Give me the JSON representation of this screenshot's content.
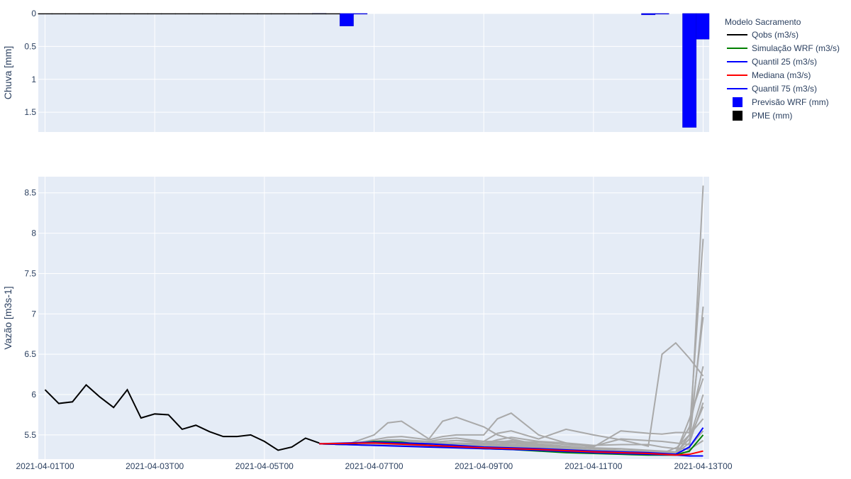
{
  "chart_data": [
    {
      "type": "bar",
      "ylabel": "Chuva [mm]",
      "yaxis_reversed": true,
      "ylim": [
        0,
        1.8
      ],
      "yticks": [
        0,
        0.5,
        1,
        1.5
      ],
      "ytick_labels": [
        "0",
        "0.5",
        "1",
        "1.5"
      ],
      "grid": true,
      "series": [
        {
          "name": "Previsão WRF (mm)",
          "color": "#0000ff",
          "points": [
            [
              "2021-04-06T00",
              0.0
            ],
            [
              "2021-04-06T12",
              0.19
            ],
            [
              "2021-04-06T18",
              0.01
            ],
            [
              "2021-04-12T00",
              0.02
            ],
            [
              "2021-04-12T06",
              0.01
            ],
            [
              "2021-04-12T18",
              1.73
            ],
            [
              "2021-04-13T00",
              0.39
            ]
          ]
        },
        {
          "name": "PME (mm)",
          "color": "#000000",
          "points": [
            [
              "2021-04-01T00",
              0.01
            ],
            [
              "2021-04-01T06",
              0.01
            ],
            [
              "2021-04-01T12",
              0.01
            ],
            [
              "2021-04-01T18",
              0.01
            ],
            [
              "2021-04-02T00",
              0.01
            ],
            [
              "2021-04-02T06",
              0.01
            ],
            [
              "2021-04-02T12",
              0.01
            ],
            [
              "2021-04-02T18",
              0.01
            ],
            [
              "2021-04-03T00",
              0.01
            ],
            [
              "2021-04-03T06",
              0.01
            ],
            [
              "2021-04-03T12",
              0.01
            ],
            [
              "2021-04-03T18",
              0.01
            ],
            [
              "2021-04-04T00",
              0.01
            ],
            [
              "2021-04-04T06",
              0.01
            ],
            [
              "2021-04-04T12",
              0.01
            ],
            [
              "2021-04-04T18",
              0.01
            ],
            [
              "2021-04-05T00",
              0.01
            ],
            [
              "2021-04-05T06",
              0.01
            ],
            [
              "2021-04-05T12",
              0.01
            ],
            [
              "2021-04-05T18",
              0.01
            ],
            [
              "2021-04-06T00",
              0.01
            ],
            [
              "2021-04-06T06",
              0.01
            ]
          ]
        }
      ]
    },
    {
      "type": "line",
      "ylabel": "Vazão [m3s-1]",
      "ylim": [
        5.2,
        8.7
      ],
      "yticks": [
        5.5,
        6,
        6.5,
        7,
        7.5,
        8,
        8.5
      ],
      "ytick_labels": [
        "5.5",
        "6",
        "6.5",
        "7",
        "7.5",
        "8",
        "8.5"
      ],
      "xlim": [
        "2021-04-01T00",
        "2021-04-13T03"
      ],
      "xticks": [
        "2021-04-01T00",
        "2021-04-03T00",
        "2021-04-05T00",
        "2021-04-07T00",
        "2021-04-09T00",
        "2021-04-11T00",
        "2021-04-13T00"
      ],
      "xtick_labels": [
        "2021-04-01T00",
        "2021-04-03T00",
        "2021-04-05T00",
        "2021-04-07T00",
        "2021-04-09T00",
        "2021-04-11T00",
        "2021-04-13T00"
      ],
      "grid": true,
      "series": [
        {
          "name": "Qobs (m3/s)",
          "color": "#000000",
          "x": [
            "2021-04-01T00",
            "2021-04-01T06",
            "2021-04-01T12",
            "2021-04-01T18",
            "2021-04-02T00",
            "2021-04-02T06",
            "2021-04-02T12",
            "2021-04-02T18",
            "2021-04-03T00",
            "2021-04-03T06",
            "2021-04-03T12",
            "2021-04-03T18",
            "2021-04-04T00",
            "2021-04-04T06",
            "2021-04-04T12",
            "2021-04-04T18",
            "2021-04-05T00",
            "2021-04-05T06",
            "2021-04-05T12",
            "2021-04-05T18",
            "2021-04-06T00"
          ],
          "y": [
            6.06,
            5.89,
            5.91,
            6.12,
            5.97,
            5.84,
            6.06,
            5.71,
            5.76,
            5.75,
            5.57,
            5.62,
            5.54,
            5.48,
            5.48,
            5.5,
            5.42,
            5.31,
            5.35,
            5.46,
            5.4
          ]
        },
        {
          "name": "Simulação WRF (m3/s)",
          "color": "#008000",
          "x": [
            "2021-04-06T00",
            "2021-04-06T12",
            "2021-04-07T00",
            "2021-04-07T12",
            "2021-04-08T00",
            "2021-04-08T12",
            "2021-04-09T00",
            "2021-04-09T12",
            "2021-04-10T00",
            "2021-04-10T12",
            "2021-04-11T00",
            "2021-04-11T12",
            "2021-04-12T00",
            "2021-04-12T12",
            "2021-04-12T18",
            "2021-04-13T00"
          ],
          "y": [
            5.39,
            5.38,
            5.42,
            5.41,
            5.37,
            5.35,
            5.33,
            5.32,
            5.3,
            5.28,
            5.27,
            5.26,
            5.25,
            5.25,
            5.3,
            5.5
          ]
        },
        {
          "name": "Quantil 25 (m3/s)",
          "color": "#0000ff",
          "x": [
            "2021-04-06T00",
            "2021-04-07T00",
            "2021-04-08T00",
            "2021-04-09T00",
            "2021-04-10T00",
            "2021-04-11T00",
            "2021-04-12T00",
            "2021-04-12T12",
            "2021-04-12T18",
            "2021-04-13T00"
          ],
          "y": [
            5.39,
            5.37,
            5.35,
            5.33,
            5.31,
            5.28,
            5.26,
            5.25,
            5.24,
            5.24
          ]
        },
        {
          "name": "Mediana (m3/s)",
          "color": "#ff0000",
          "x": [
            "2021-04-06T00",
            "2021-04-07T00",
            "2021-04-08T00",
            "2021-04-09T00",
            "2021-04-10T00",
            "2021-04-11T00",
            "2021-04-12T00",
            "2021-04-12T12",
            "2021-04-12T18",
            "2021-04-13T00"
          ],
          "y": [
            5.39,
            5.4,
            5.37,
            5.34,
            5.32,
            5.29,
            5.27,
            5.25,
            5.26,
            5.3
          ]
        },
        {
          "name": "Quantil 75 (m3/s)",
          "color": "#0000ff",
          "x": [
            "2021-04-06T00",
            "2021-04-07T00",
            "2021-04-08T00",
            "2021-04-09T00",
            "2021-04-10T00",
            "2021-04-11T00",
            "2021-04-12T00",
            "2021-04-12T12",
            "2021-04-12T18",
            "2021-04-13T00"
          ],
          "y": [
            5.39,
            5.41,
            5.39,
            5.35,
            5.33,
            5.3,
            5.28,
            5.26,
            5.35,
            5.59
          ]
        }
      ],
      "ensemble": {
        "color": "#a9a9a9",
        "x": [
          "2021-04-06T00",
          "2021-04-06T12",
          "2021-04-07T00",
          "2021-04-07T06",
          "2021-04-07T12",
          "2021-04-08T00",
          "2021-04-08T06",
          "2021-04-08T12",
          "2021-04-09T00",
          "2021-04-09T06",
          "2021-04-09T12",
          "2021-04-10T00",
          "2021-04-10T12",
          "2021-04-11T00",
          "2021-04-11T12",
          "2021-04-12T00",
          "2021-04-12T06",
          "2021-04-12T12",
          "2021-04-12T18",
          "2021-04-13T00"
        ],
        "members": [
          [
            5.39,
            5.38,
            5.5,
            5.65,
            5.67,
            5.45,
            5.67,
            5.72,
            5.6,
            5.5,
            5.45,
            5.38,
            5.34,
            5.3,
            5.27,
            5.26,
            5.26,
            5.27,
            5.29,
            8.59
          ],
          [
            5.39,
            5.38,
            5.44,
            5.47,
            5.48,
            5.44,
            5.48,
            5.5,
            5.5,
            5.7,
            5.77,
            5.5,
            5.4,
            5.35,
            5.55,
            5.52,
            5.51,
            5.53,
            5.53,
            7.93
          ],
          [
            5.39,
            5.38,
            5.42,
            5.44,
            5.44,
            5.42,
            5.45,
            5.46,
            5.42,
            5.52,
            5.55,
            5.45,
            5.57,
            5.5,
            5.44,
            5.36,
            6.5,
            6.64,
            6.45,
            6.23
          ],
          [
            5.39,
            5.38,
            5.41,
            5.43,
            5.43,
            5.41,
            5.42,
            5.43,
            5.42,
            5.42,
            5.42,
            5.41,
            5.38,
            5.36,
            5.45,
            5.43,
            5.42,
            5.4,
            5.38,
            7.09
          ],
          [
            5.39,
            5.38,
            5.4,
            5.42,
            5.42,
            5.39,
            5.4,
            5.4,
            5.39,
            5.44,
            5.47,
            5.42,
            5.4,
            5.37,
            5.38,
            5.38,
            5.35,
            5.33,
            5.5,
            6.96
          ],
          [
            5.39,
            5.38,
            5.4,
            5.41,
            5.41,
            5.39,
            5.39,
            5.39,
            5.38,
            5.41,
            5.43,
            5.39,
            5.36,
            5.34,
            5.33,
            5.31,
            5.3,
            5.29,
            5.6,
            6.35
          ],
          [
            5.39,
            5.38,
            5.39,
            5.4,
            5.4,
            5.38,
            5.39,
            5.39,
            5.37,
            5.39,
            5.4,
            5.37,
            5.35,
            5.33,
            5.3,
            5.29,
            5.28,
            5.28,
            5.45,
            6.0
          ],
          [
            5.39,
            5.38,
            5.38,
            5.39,
            5.39,
            5.37,
            5.37,
            5.37,
            5.36,
            5.37,
            5.37,
            5.35,
            5.33,
            5.31,
            5.29,
            5.28,
            5.27,
            5.27,
            5.4,
            5.9
          ],
          [
            5.39,
            5.38,
            5.38,
            5.38,
            5.38,
            5.36,
            5.36,
            5.36,
            5.35,
            5.36,
            5.36,
            5.34,
            5.32,
            5.3,
            5.28,
            5.27,
            5.26,
            5.26,
            5.5,
            5.7
          ],
          [
            5.39,
            5.38,
            5.37,
            5.37,
            5.37,
            5.35,
            5.35,
            5.35,
            5.34,
            5.35,
            5.35,
            5.33,
            5.31,
            5.29,
            5.27,
            5.26,
            5.25,
            5.25,
            5.35,
            5.55
          ],
          [
            5.39,
            5.38,
            5.38,
            5.39,
            5.4,
            5.38,
            5.38,
            5.39,
            5.37,
            5.38,
            5.38,
            5.36,
            5.34,
            5.31,
            5.29,
            5.28,
            5.27,
            5.27,
            5.7,
            6.2
          ],
          [
            5.39,
            5.38,
            5.39,
            5.4,
            5.41,
            5.39,
            5.42,
            5.43,
            5.4,
            5.41,
            5.41,
            5.38,
            5.36,
            5.33,
            5.31,
            5.3,
            5.29,
            5.28,
            5.45,
            5.85
          ],
          [
            5.39,
            5.38,
            5.37,
            5.37,
            5.37,
            5.35,
            5.35,
            5.35,
            5.34,
            5.34,
            5.34,
            5.32,
            5.31,
            5.29,
            5.28,
            5.27,
            5.27,
            5.34,
            5.32,
            5.43
          ]
        ]
      }
    }
  ],
  "legend": {
    "title": "Modelo Sacramento",
    "items": [
      {
        "label": "Qobs (m3/s)",
        "kind": "line",
        "color": "#000000"
      },
      {
        "label": "Simulação WRF (m3/s)",
        "kind": "line",
        "color": "#008000"
      },
      {
        "label": "Quantil 25 (m3/s)",
        "kind": "line",
        "color": "#0000ff"
      },
      {
        "label": "Mediana (m3/s)",
        "kind": "line",
        "color": "#ff0000"
      },
      {
        "label": "Quantil 75 (m3/s)",
        "kind": "line",
        "color": "#0000ff"
      },
      {
        "label": "Previsão WRF (mm)",
        "kind": "square",
        "color": "#0000ff"
      },
      {
        "label": "PME (mm)",
        "kind": "square",
        "color": "#000000"
      }
    ]
  },
  "colors": {
    "plot_bg": "#e5ecf6",
    "grid": "#ffffff",
    "ensemble": "#a9a9a9",
    "text": "#2a3f5f"
  }
}
